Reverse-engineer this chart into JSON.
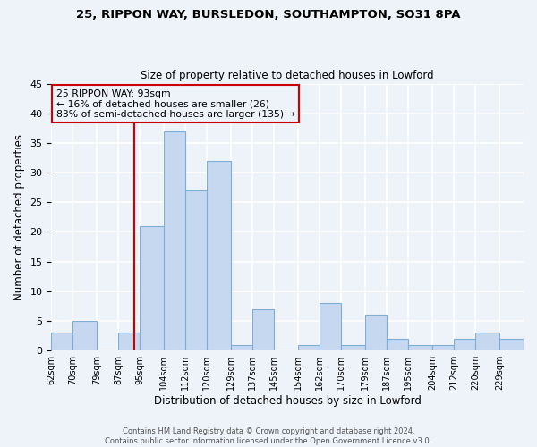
{
  "title1": "25, RIPPON WAY, BURSLEDON, SOUTHAMPTON, SO31 8PA",
  "title2": "Size of property relative to detached houses in Lowford",
  "xlabel": "Distribution of detached houses by size in Lowford",
  "ylabel": "Number of detached properties",
  "bin_labels": [
    "62sqm",
    "70sqm",
    "79sqm",
    "87sqm",
    "95sqm",
    "104sqm",
    "112sqm",
    "120sqm",
    "129sqm",
    "137sqm",
    "145sqm",
    "154sqm",
    "162sqm",
    "170sqm",
    "179sqm",
    "187sqm",
    "195sqm",
    "204sqm",
    "212sqm",
    "220sqm",
    "229sqm"
  ],
  "bin_edges": [
    62,
    70,
    79,
    87,
    95,
    104,
    112,
    120,
    129,
    137,
    145,
    154,
    162,
    170,
    179,
    187,
    195,
    204,
    212,
    220,
    229
  ],
  "counts": [
    3,
    5,
    0,
    3,
    21,
    37,
    27,
    32,
    1,
    7,
    0,
    1,
    8,
    1,
    6,
    2,
    1,
    1,
    2,
    3,
    2
  ],
  "bar_color": "#c5d8f0",
  "bar_edge_color": "#7faed4",
  "property_value": 93,
  "vline_color": "#cc0000",
  "annotation_box_edge_color": "#cc0000",
  "annotation_line1": "25 RIPPON WAY: 93sqm",
  "annotation_line2": "← 16% of detached houses are smaller (26)",
  "annotation_line3": "83% of semi-detached houses are larger (135) →",
  "footer_line1": "Contains HM Land Registry data © Crown copyright and database right 2024.",
  "footer_line2": "Contains public sector information licensed under the Open Government Licence v3.0.",
  "ylim": [
    0,
    45
  ],
  "background_color": "#eef2f9",
  "grid_color": "#ffffff"
}
